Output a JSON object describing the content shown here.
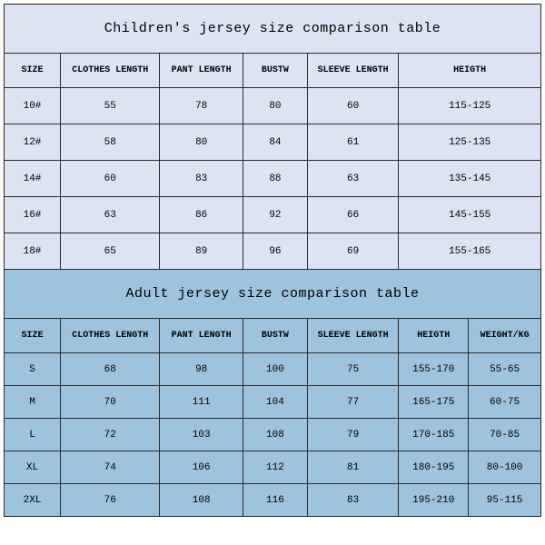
{
  "children": {
    "title": "Children's jersey size comparison table",
    "columns": [
      "SIZE",
      "CLOTHES LENGTH",
      "PANT LENGTH",
      "BUSTW",
      "SLEEVE LENGTH",
      "HEIGTH"
    ],
    "rows": [
      [
        "10#",
        "55",
        "78",
        "80",
        "60",
        "115-125"
      ],
      [
        "12#",
        "58",
        "80",
        "84",
        "61",
        "125-135"
      ],
      [
        "14#",
        "60",
        "83",
        "88",
        "63",
        "135-145"
      ],
      [
        "16#",
        "63",
        "86",
        "92",
        "66",
        "145-155"
      ],
      [
        "18#",
        "65",
        "89",
        "96",
        "69",
        "155-165"
      ]
    ],
    "bg_color": "#dce3f2",
    "border_color": "#2a2a2a",
    "title_fontsize": 15,
    "header_fontsize": 10,
    "cell_fontsize": 11,
    "col_widths_pct": [
      10.5,
      18.5,
      15.5,
      12,
      17,
      26.5
    ]
  },
  "adult": {
    "title": "Adult jersey size comparison table",
    "columns": [
      "SIZE",
      "CLOTHES LENGTH",
      "PANT LENGTH",
      "BUSTW",
      "SLEEVE LENGTH",
      "HEIGTH",
      "WEIGHT/KG"
    ],
    "rows": [
      [
        "S",
        "68",
        "98",
        "100",
        "75",
        "155-170",
        "55-65"
      ],
      [
        "M",
        "70",
        "111",
        "104",
        "77",
        "165-175",
        "60-75"
      ],
      [
        "L",
        "72",
        "103",
        "108",
        "79",
        "170-185",
        "70-85"
      ],
      [
        "XL",
        "74",
        "106",
        "112",
        "81",
        "180-195",
        "80-100"
      ],
      [
        "2XL",
        "76",
        "108",
        "116",
        "83",
        "195-210",
        "95-115"
      ]
    ],
    "bg_color": "#9ec3de",
    "border_color": "#2a2a2a",
    "title_fontsize": 15,
    "header_fontsize": 10,
    "cell_fontsize": 11,
    "col_widths_pct": [
      10.5,
      18.5,
      15.5,
      12,
      17,
      13,
      13.5
    ]
  }
}
